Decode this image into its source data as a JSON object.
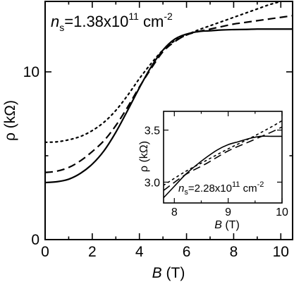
{
  "chart_data": [
    {
      "type": "line",
      "annotation": {
        "n": "n",
        "sub": "s",
        "eq": "=1.38x10",
        "exp": "11",
        "unit": " cm",
        "unit_exp": "-2"
      },
      "xlabel": {
        "var": "B",
        "unit": " (T)"
      },
      "ylabel": "ρ (kΩ)",
      "xlim": [
        0,
        10.5
      ],
      "ylim": [
        0,
        14.2
      ],
      "xticks": [
        0,
        2,
        4,
        6,
        8,
        10
      ],
      "yticks": [
        0,
        10
      ],
      "xtick_labels": [
        "0",
        "2",
        "4",
        "6",
        "8",
        "10"
      ],
      "ytick_labels": [
        "0",
        "10"
      ],
      "series": [
        {
          "style": "dotted",
          "x": [
            0,
            0.5,
            1,
            1.5,
            2,
            2.5,
            3,
            3.5,
            4,
            4.5,
            5,
            5.5,
            6,
            6.5,
            7,
            7.5,
            8,
            8.5,
            9,
            9.5,
            10,
            10.5
          ],
          "y": [
            5.8,
            5.83,
            5.95,
            6.15,
            6.5,
            7.0,
            7.7,
            8.6,
            9.6,
            10.5,
            11.3,
            11.85,
            12.2,
            12.5,
            12.75,
            13.0,
            13.25,
            13.5,
            13.75,
            14.0,
            14.2,
            14.45
          ]
        },
        {
          "style": "dashed",
          "x": [
            0,
            0.5,
            1,
            1.5,
            2,
            2.5,
            3,
            3.5,
            4,
            4.5,
            5,
            5.5,
            6,
            6.5,
            7,
            7.5,
            8,
            8.5,
            9,
            9.5,
            10,
            10.5
          ],
          "y": [
            4.0,
            4.08,
            4.3,
            4.7,
            5.25,
            5.9,
            6.8,
            7.9,
            9.1,
            10.2,
            11.2,
            11.8,
            12.2,
            12.4,
            12.55,
            12.7,
            12.85,
            12.95,
            13.05,
            13.15,
            13.25,
            13.35
          ]
        },
        {
          "style": "solid",
          "x": [
            0,
            0.5,
            1,
            1.5,
            2,
            2.5,
            3,
            3.5,
            4,
            4.5,
            5,
            5.5,
            6,
            6.5,
            7,
            7.5,
            8,
            8.5,
            9,
            9.5,
            10,
            10.5
          ],
          "y": [
            3.4,
            3.45,
            3.6,
            3.95,
            4.5,
            5.3,
            6.4,
            7.7,
            9.05,
            10.3,
            11.3,
            11.95,
            12.25,
            12.4,
            12.45,
            12.5,
            12.52,
            12.53,
            12.55,
            12.55,
            12.55,
            12.55
          ]
        }
      ]
    },
    {
      "type": "line",
      "annotation": {
        "n": "n",
        "sub": "s",
        "eq": "=2.28x10",
        "exp": "11",
        "unit": " cm",
        "unit_exp": "-2"
      },
      "xlabel": {
        "var": "B",
        "unit": " (T)"
      },
      "ylabel": "ρ (kΩ)",
      "xlim": [
        7.8,
        10
      ],
      "ylim": [
        2.8,
        3.68
      ],
      "xticks": [
        8,
        9,
        10
      ],
      "yticks": [
        3.0,
        3.5
      ],
      "xtick_labels": [
        "8",
        "9",
        "10"
      ],
      "ytick_labels": [
        "3.0",
        "3.5"
      ],
      "series": [
        {
          "style": "dotted",
          "x": [
            7.8,
            8.2,
            8.6,
            9.0,
            9.4,
            9.8,
            10.0
          ],
          "y": [
            2.97,
            3.1,
            3.21,
            3.32,
            3.42,
            3.53,
            3.59
          ]
        },
        {
          "style": "dashed",
          "x": [
            7.8,
            8.2,
            8.6,
            9.0,
            9.4,
            9.8,
            10.0
          ],
          "y": [
            2.92,
            3.07,
            3.18,
            3.3,
            3.39,
            3.48,
            3.53
          ]
        },
        {
          "style": "solid",
          "x": [
            7.8,
            8.0,
            8.2,
            8.4,
            8.6,
            8.8,
            9.0,
            9.2,
            9.4,
            9.6,
            9.8,
            10.0
          ],
          "y": [
            2.85,
            2.96,
            3.07,
            3.16,
            3.24,
            3.31,
            3.36,
            3.39,
            3.42,
            3.44,
            3.44,
            3.44
          ]
        }
      ]
    }
  ]
}
